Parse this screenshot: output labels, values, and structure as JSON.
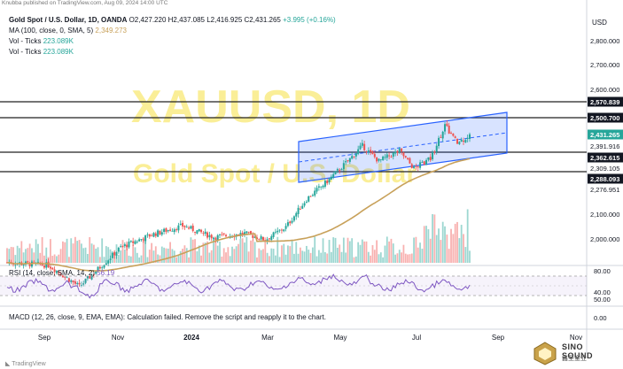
{
  "header": {
    "published_line": "Knubba published on TradingView.com, Aug 09, 2024 14:00 UTC"
  },
  "legend": {
    "symbol": "Gold Spot / U.S. Dollar, 1D, OANDA",
    "open": "O2,427.220",
    "high": "H2,437.085",
    "low": "L2,416.925",
    "close": "C2,431.265",
    "change": "+3.995 (+0.16%)",
    "ma_label": "MA (100, close, 0, SMA, 5)",
    "ma_value": "2,349.273",
    "vol1_label": "Vol - Ticks",
    "vol1_value": "223.089K",
    "vol2_label": "Vol - Ticks",
    "vol2_value": "223.089K"
  },
  "watermark": {
    "title": "XAUUSD, 1D",
    "subtitle": "Gold Spot / U.S. Dollar"
  },
  "currency": "USD",
  "price_axis": {
    "ticks": [
      "2,800.000",
      "2,700.000",
      "2,600.000",
      "2,100.000",
      "2,000.000"
    ],
    "tags": [
      {
        "label": "2,570.839",
        "kind": "level"
      },
      {
        "label": "2,500.700",
        "kind": "level"
      },
      {
        "label": "2,431.265",
        "kind": "current"
      },
      {
        "label": "2,391.916",
        "kind": "plain"
      },
      {
        "label": "2,362.615",
        "kind": "level"
      },
      {
        "label": "2,309.105",
        "kind": "plain"
      },
      {
        "label": "2,288.093",
        "kind": "level"
      },
      {
        "label": "2,276.951",
        "kind": "plain"
      }
    ]
  },
  "rsi": {
    "label": "RSI (14, close, SMA, 14, 2)",
    "value": "56.19",
    "ticks": [
      "80.00",
      "40.00"
    ]
  },
  "macd": {
    "message": "MACD (12, 26, close, 9, EMA, EMA): Calculation failed. Remove the script and reapply it to the chart.",
    "ticks": [
      "50.00",
      "0.00"
    ]
  },
  "time_axis": [
    "Sep",
    "Nov",
    "2024",
    "Mar",
    "May",
    "Jul",
    "Sep",
    "Nov"
  ],
  "footer": {
    "tradingview": "TradingView",
    "logo_name": "SINO SOUND",
    "logo_cn": "鑫圣金业"
  },
  "colors": {
    "up": "#26a69a",
    "down": "#ef5350",
    "ma": "#c8a15a",
    "channel": "#2962ff",
    "rsi": "#7e57c2",
    "watermark": "#f5e042",
    "current_tag": "#26a69a",
    "level_tag": "#131722"
  },
  "icons": [
    "tradingview-logo-icon",
    "sino-sound-logo-icon"
  ],
  "chart_data": {
    "type": "candlestick",
    "series_summary": "daily candles rising from about 1,830 in Sep 2023 to about 2,431 in Aug 2024",
    "ma_last": 2349.273,
    "last_close": 2431.265,
    "ylim_note": "price scale spans roughly 1,800 to 2,850"
  }
}
